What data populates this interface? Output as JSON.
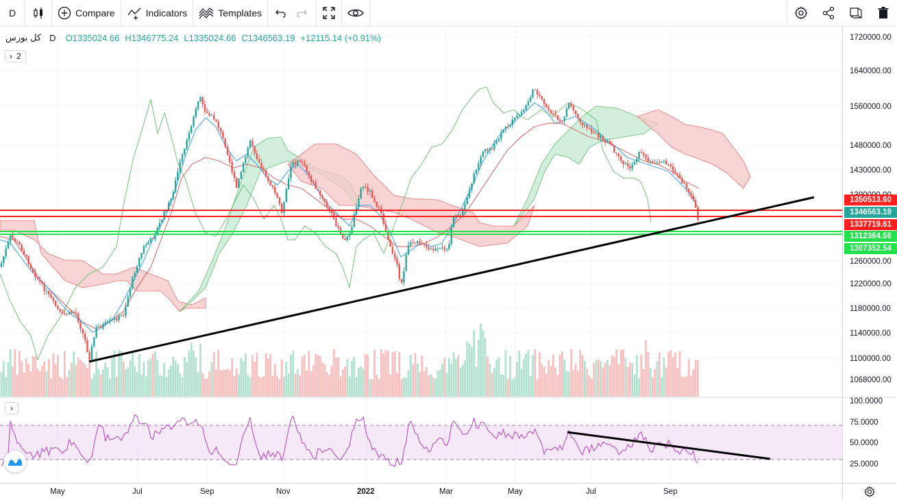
{
  "toolbar": {
    "interval": "D",
    "compare_label": "Compare",
    "indicators_label": "Indicators",
    "templates_label": "Templates"
  },
  "legend": {
    "symbol": "کل بورس",
    "interval": "D",
    "open": "O1335024.66",
    "high": "H1346775.24",
    "low": "L1335024.66",
    "close": "C1346563.19",
    "change": "+12115.14 (+0.91%)",
    "collapsed_count": "2"
  },
  "price_axis": {
    "ticks": [
      "1720000.00",
      "1640000.00",
      "1560000.00",
      "1480000.00",
      "1430000.00",
      "1390000.00",
      "1260000.00",
      "1220000.00",
      "1180000.00",
      "1140000.00",
      "1100000.00",
      "1068000.00"
    ],
    "labels": [
      {
        "text": "1350513.60",
        "color": "#ff1f1f"
      },
      {
        "text": "1346563.19",
        "color": "#26a69a"
      },
      {
        "text": "1337719.61",
        "color": "#ff1f1f"
      },
      {
        "text": "1312364.56",
        "color": "#22e04a"
      },
      {
        "text": "1307352.54",
        "color": "#22e04a"
      }
    ]
  },
  "rsi_axis": {
    "ticks": [
      "100.0000",
      "75.0000",
      "50.0000",
      "25.0000"
    ]
  },
  "time_axis": {
    "labels": [
      "May",
      "Jul",
      "Sep",
      "Nov",
      "2022",
      "Mar",
      "May",
      "Jul",
      "Sep"
    ]
  },
  "colors": {
    "up": "#26a69a",
    "down": "#ef5350",
    "resistance": "#ff1f1f",
    "support": "#22e04a",
    "rsi": "#b74fc2"
  }
}
